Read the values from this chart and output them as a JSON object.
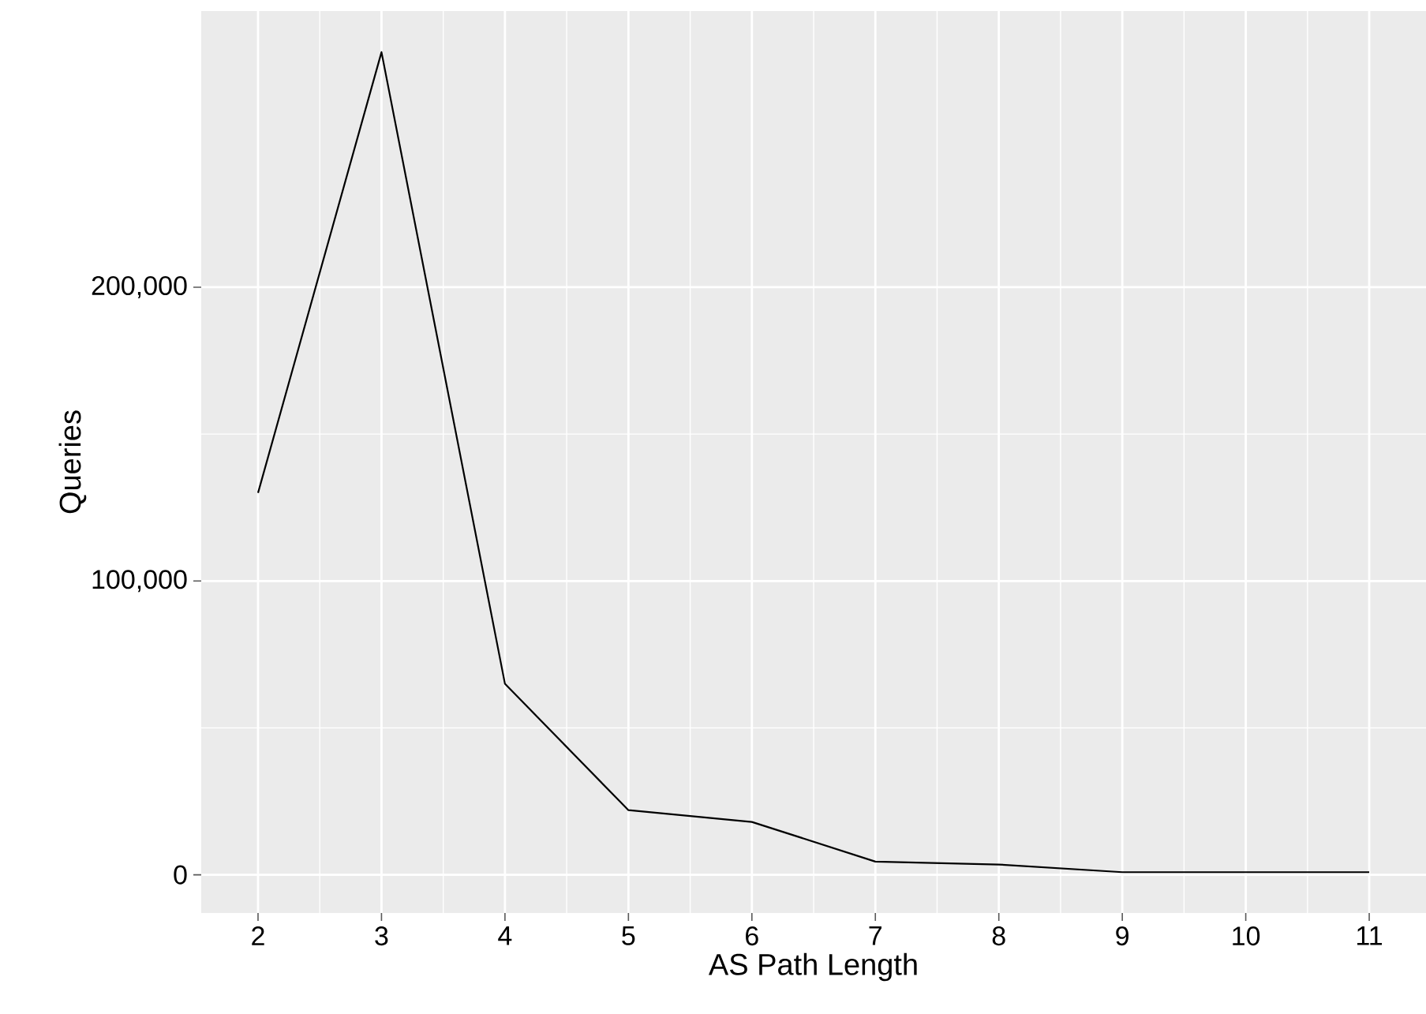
{
  "chart_data": {
    "type": "line",
    "xlabel": "AS Path Length",
    "ylabel": "Queries",
    "x": [
      2,
      3,
      4,
      5,
      6,
      7,
      8,
      9,
      10,
      11
    ],
    "series": [
      {
        "color": "#000000",
        "values": [
          130000,
          280000,
          65000,
          22000,
          18000,
          4500,
          3500,
          900,
          900,
          900
        ]
      }
    ],
    "xlim": [
      1.54,
      11.46
    ],
    "ylim": [
      -13000,
      294000
    ],
    "xticks": [
      2,
      3,
      4,
      5,
      6,
      7,
      8,
      9,
      10,
      11
    ],
    "yticks": [
      {
        "value": 0,
        "label": "0"
      },
      {
        "value": 100000,
        "label": "100,000"
      },
      {
        "value": 200000,
        "label": "200,000"
      }
    ],
    "grid": true,
    "marker": "none",
    "line_style": "solid"
  }
}
